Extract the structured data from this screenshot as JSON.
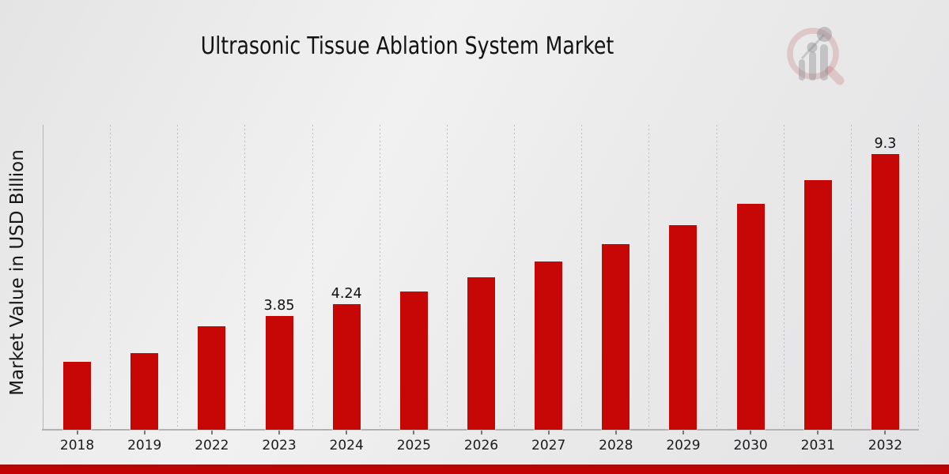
{
  "header": {
    "title": "Ultrasonic Tissue Ablation System Market"
  },
  "chart_data": {
    "type": "bar",
    "title": "Ultrasonic Tissue Ablation System Market",
    "xlabel": "",
    "ylabel": "Market Value in USD Billion",
    "categories": [
      "2018",
      "2019",
      "2022",
      "2023",
      "2024",
      "2025",
      "2026",
      "2027",
      "2028",
      "2029",
      "2030",
      "2031",
      "2032"
    ],
    "values": [
      2.3,
      2.6,
      3.49,
      3.85,
      4.24,
      4.67,
      5.15,
      5.68,
      6.27,
      6.92,
      7.64,
      8.43,
      9.3
    ],
    "bar_labels": [
      "",
      "",
      "",
      "3.85",
      "4.24",
      "",
      "",
      "",
      "",
      "",
      "",
      "",
      "9.3"
    ],
    "bar_color": "#c70606",
    "ylim": [
      0,
      10.3
    ],
    "grid": "vertical-dashed",
    "legend": false
  },
  "branding": {
    "logo_icon": "magnifier-bar-chart-watermark",
    "accent_color": "#c30303",
    "accent_dark": "#9e0f0f"
  }
}
